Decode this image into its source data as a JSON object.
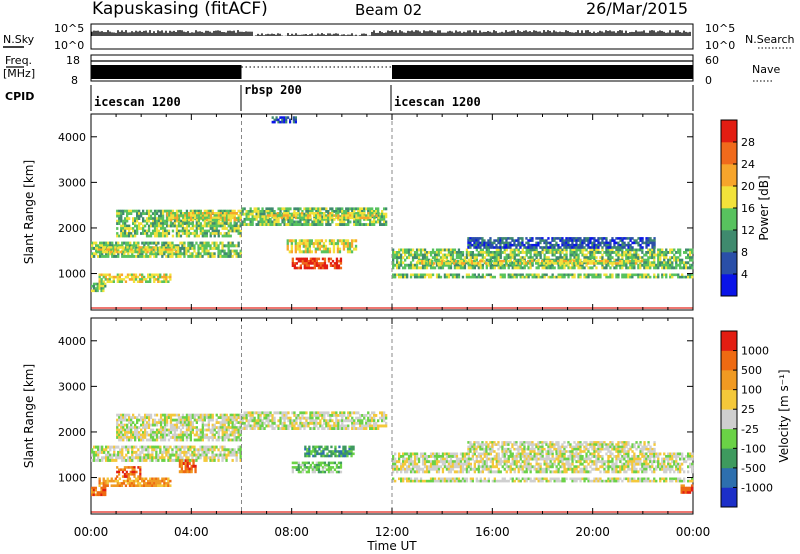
{
  "header": {
    "station": "Kapuskasing (fitACF)",
    "beam": "Beam 02",
    "date": "26/Mar/2015"
  },
  "aux_panels": {
    "nsky_label": "N.Sky",
    "nsearch_label": "N.Search",
    "nsky_ticks": [
      "10^5",
      "10^0"
    ],
    "nsearch_ticks": [
      "10^5",
      "10^0"
    ],
    "freq_label": "Freq.",
    "freq_unit": "[MHz]",
    "freq_ticks": [
      "18",
      "8"
    ],
    "nave_label": "Nave",
    "nave_ticks": [
      "60",
      "0"
    ],
    "cpid_label": "CPID",
    "modes": [
      {
        "name": "icescan 1200",
        "start": 0,
        "end": 6
      },
      {
        "name": "rbsp 200",
        "start": 6,
        "end": 12
      },
      {
        "name": "icescan 1200",
        "start": 12,
        "end": 24
      }
    ]
  },
  "power_scale": {
    "label": "Power [dB]",
    "ticks": [
      "4",
      "8",
      "12",
      "16",
      "20",
      "24",
      "28"
    ],
    "colors": [
      "#0a14e8",
      "#2a4fa8",
      "#3f8a6e",
      "#58c25e",
      "#f2e23a",
      "#f7a52b",
      "#f06a1c",
      "#e21d12"
    ]
  },
  "velocity_scale": {
    "label": "Velocity [m s⁻¹]",
    "ticks": [
      "1000",
      "500",
      "100",
      "25",
      "-25",
      "-100",
      "-500",
      "-1000"
    ],
    "colors": [
      "#1c2fc8",
      "#2d6fae",
      "#3e9a5e",
      "#6ad246",
      "#cfcfcf",
      "#f4c83a",
      "#f09a22",
      "#ee6a12",
      "#e21d12"
    ]
  },
  "chart_data": [
    {
      "type": "heatmap",
      "name": "power",
      "ylabel": "Slant Range [km]",
      "yticks": [
        1000,
        2000,
        3000,
        4000
      ],
      "ylim": [
        200,
        4500
      ],
      "xlim": [
        0,
        24
      ],
      "regions": [
        {
          "t0": 0.0,
          "t1": 6.0,
          "r0": 1350,
          "r1": 1700,
          "level": 3
        },
        {
          "t0": 0.2,
          "t1": 3.5,
          "r0": 1450,
          "r1": 1600,
          "level": 4
        },
        {
          "t0": 1.0,
          "t1": 6.0,
          "r0": 1800,
          "r1": 2400,
          "level": 3
        },
        {
          "t0": 3.0,
          "t1": 6.0,
          "r0": 2150,
          "r1": 2350,
          "level": 4
        },
        {
          "t0": 6.0,
          "t1": 11.8,
          "r0": 2050,
          "r1": 2450,
          "level": 3
        },
        {
          "t0": 7.0,
          "t1": 11.5,
          "r0": 2200,
          "r1": 2350,
          "level": 4
        },
        {
          "t0": 8.0,
          "t1": 10.0,
          "r0": 1100,
          "r1": 1350,
          "level": 7
        },
        {
          "t0": 7.8,
          "t1": 10.6,
          "r0": 1450,
          "r1": 1750,
          "level": 4
        },
        {
          "t0": 0.3,
          "t1": 3.2,
          "r0": 800,
          "r1": 1000,
          "level": 4
        },
        {
          "t0": 0.0,
          "t1": 0.6,
          "r0": 600,
          "r1": 800,
          "level": 3
        },
        {
          "t0": 12.0,
          "t1": 24.0,
          "r0": 1100,
          "r1": 1550,
          "level": 3
        },
        {
          "t0": 13.0,
          "t1": 22.0,
          "r0": 1200,
          "r1": 1300,
          "level": 4
        },
        {
          "t0": 12.0,
          "t1": 24.0,
          "r0": 900,
          "r1": 1000,
          "level": 3
        },
        {
          "t0": 15.0,
          "t1": 22.5,
          "r0": 1550,
          "r1": 1800,
          "level": 1
        },
        {
          "t0": 7.2,
          "t1": 8.2,
          "r0": 4300,
          "r1": 4450,
          "level": 1
        }
      ]
    },
    {
      "type": "heatmap",
      "name": "velocity",
      "ylabel": "Slant Range [km]",
      "xlabel": "Time UT",
      "yticks": [
        1000,
        2000,
        3000,
        4000
      ],
      "xticks": [
        "00:00",
        "04:00",
        "08:00",
        "12:00",
        "16:00",
        "20:00",
        "00:00"
      ],
      "ylim": [
        200,
        4500
      ],
      "xlim": [
        0,
        24
      ],
      "regions": [
        {
          "t0": 0.0,
          "t1": 6.0,
          "r0": 1350,
          "r1": 1700,
          "level": 4
        },
        {
          "t0": 1.0,
          "t1": 6.0,
          "r0": 1800,
          "r1": 2400,
          "level": 4
        },
        {
          "t0": 6.0,
          "t1": 11.8,
          "r0": 2050,
          "r1": 2450,
          "level": 4
        },
        {
          "t0": 8.0,
          "t1": 10.0,
          "r0": 1100,
          "r1": 1350,
          "level": 3
        },
        {
          "t0": 8.5,
          "t1": 10.5,
          "r0": 1450,
          "r1": 1700,
          "level": 2
        },
        {
          "t0": 0.0,
          "t1": 0.6,
          "r0": 600,
          "r1": 800,
          "level": 7
        },
        {
          "t0": 0.3,
          "t1": 3.2,
          "r0": 800,
          "r1": 1000,
          "level": 6
        },
        {
          "t0": 1.0,
          "t1": 2.0,
          "r0": 1000,
          "r1": 1250,
          "level": 7
        },
        {
          "t0": 3.5,
          "t1": 4.2,
          "r0": 1100,
          "r1": 1400,
          "level": 7
        },
        {
          "t0": 12.0,
          "t1": 24.0,
          "r0": 1100,
          "r1": 1550,
          "level": 4
        },
        {
          "t0": 12.0,
          "t1": 24.0,
          "r0": 900,
          "r1": 1000,
          "level": 4
        },
        {
          "t0": 23.5,
          "t1": 24.0,
          "r0": 650,
          "r1": 850,
          "level": 7
        },
        {
          "t0": 15.0,
          "t1": 22.5,
          "r0": 1550,
          "r1": 1800,
          "level": 4
        }
      ]
    }
  ]
}
